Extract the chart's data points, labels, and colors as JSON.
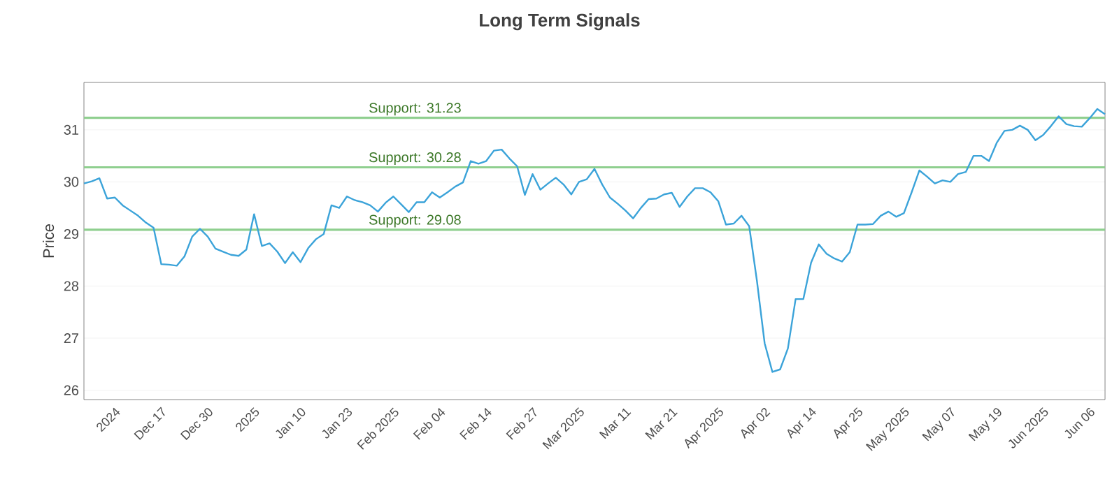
{
  "chart_data": {
    "type": "line",
    "title": "Long Term Signals",
    "ylabel": "Price",
    "categories": [
      null,
      null,
      null,
      null,
      "2024",
      null,
      null,
      null,
      null,
      null,
      "Dec 17",
      null,
      null,
      null,
      null,
      null,
      "Dec 30",
      null,
      null,
      null,
      null,
      null,
      "2025",
      null,
      null,
      null,
      null,
      null,
      "Jan 10",
      null,
      null,
      null,
      null,
      null,
      "Jan 23",
      null,
      null,
      null,
      null,
      null,
      "Feb 2025",
      null,
      null,
      null,
      null,
      null,
      "Feb 04",
      null,
      null,
      null,
      null,
      null,
      "Feb 14",
      null,
      null,
      null,
      null,
      null,
      "Feb 27",
      null,
      null,
      null,
      null,
      null,
      "Mar 2025",
      null,
      null,
      null,
      null,
      null,
      "Mar 11",
      null,
      null,
      null,
      null,
      null,
      "Mar 21",
      null,
      null,
      null,
      null,
      null,
      "Apr 2025",
      null,
      null,
      null,
      null,
      null,
      "Apr 02",
      null,
      null,
      null,
      null,
      null,
      "Apr 14",
      null,
      null,
      null,
      null,
      null,
      "Apr 25",
      null,
      null,
      null,
      null,
      null,
      "May 2025",
      null,
      null,
      null,
      null,
      null,
      "May 07",
      null,
      null,
      null,
      null,
      null,
      "May 19",
      null,
      null,
      null,
      null,
      null,
      "Jun 2025",
      null,
      null,
      null,
      null,
      null,
      "Jun 06",
      null,
      null
    ],
    "series": [
      {
        "color": "#3ba3d9",
        "values": [
          29.97,
          30.01,
          30.07,
          29.68,
          29.7,
          29.55,
          29.45,
          29.35,
          29.22,
          29.12,
          28.42,
          28.41,
          28.39,
          28.57,
          28.95,
          29.1,
          28.95,
          28.72,
          28.66,
          28.6,
          28.58,
          28.7,
          29.38,
          28.77,
          28.82,
          28.66,
          28.44,
          28.65,
          28.46,
          28.73,
          28.9,
          29.0,
          29.55,
          29.5,
          29.72,
          29.65,
          29.61,
          29.55,
          29.43,
          29.6,
          29.72,
          29.57,
          29.42,
          29.61,
          29.61,
          29.8,
          29.7,
          29.8,
          29.91,
          29.99,
          30.4,
          30.35,
          30.4,
          30.6,
          30.62,
          30.45,
          30.3,
          29.75,
          30.15,
          29.85,
          29.97,
          30.08,
          29.95,
          29.76,
          30.0,
          30.05,
          30.25,
          29.95,
          29.7,
          29.58,
          29.45,
          29.3,
          29.5,
          29.67,
          29.68,
          29.76,
          29.79,
          29.52,
          29.72,
          29.88,
          29.88,
          29.8,
          29.63,
          29.18,
          29.2,
          29.35,
          29.15,
          28.1,
          26.9,
          26.35,
          26.4,
          26.8,
          27.75,
          27.75,
          28.45,
          28.8,
          28.62,
          28.53,
          28.47,
          28.65,
          29.18,
          29.18,
          29.19,
          29.35,
          29.43,
          29.33,
          29.4,
          29.8,
          30.22,
          30.1,
          29.97,
          30.03,
          30.0,
          30.15,
          30.19,
          30.5,
          30.5,
          30.4,
          30.75,
          30.98,
          31.0,
          31.08,
          31.0,
          30.8,
          30.9,
          31.07,
          31.26,
          31.11,
          31.07,
          31.06,
          31.22,
          31.4,
          31.3
        ]
      }
    ],
    "ylim": [
      25.82,
      31.91
    ],
    "yticks": [
      26,
      27,
      28,
      29,
      30,
      31
    ],
    "grid": "y",
    "marker": "none",
    "line_style": "solid",
    "ref_lines": [
      {
        "axis": "y",
        "value": 31.23,
        "label": "Support: 31.23",
        "color": "#8fcf8f"
      },
      {
        "axis": "y",
        "value": 30.28,
        "label": "Support: 30.28",
        "color": "#8fcf8f"
      },
      {
        "axis": "y",
        "value": 29.08,
        "label": "Support: 29.08",
        "color": "#8fcf8f"
      }
    ]
  }
}
